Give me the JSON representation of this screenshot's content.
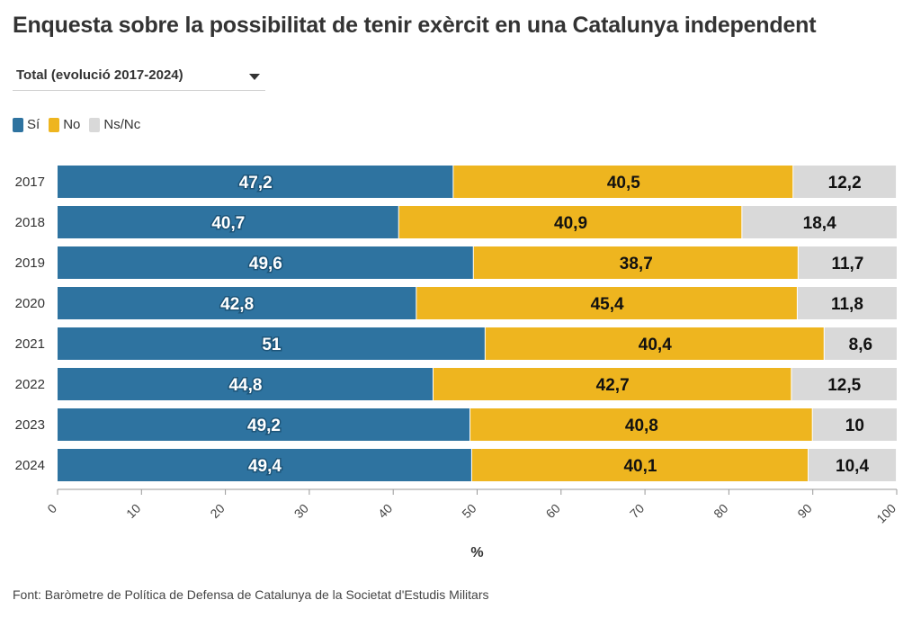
{
  "title": "Enquesta sobre la possibilitat de tenir exèrcit en una Catalunya independent",
  "dropdown": {
    "selected": "Total (evolució 2017-2024)",
    "icon": "chevron-down-icon"
  },
  "source": "Font: Baròmetre de Política de Defensa de Catalunya de la Societat d'Estudis Militars",
  "chart_data": {
    "type": "bar",
    "orientation": "horizontal",
    "stacked": true,
    "title": "Enquesta sobre la possibilitat de tenir exèrcit en una Catalunya independent",
    "xlabel": "%",
    "ylabel": "",
    "xlim": [
      0,
      100
    ],
    "xticks": [
      "0",
      "10",
      "20",
      "30",
      "40",
      "50",
      "60",
      "70",
      "80",
      "90",
      "100"
    ],
    "categories": [
      "2017",
      "2018",
      "2019",
      "2020",
      "2021",
      "2022",
      "2023",
      "2024"
    ],
    "legend_position": "top-left",
    "series": [
      {
        "name": "Sí",
        "color": "#2e73a0",
        "label_color": "#ffffff",
        "values": [
          47.2,
          40.7,
          49.6,
          42.8,
          51,
          44.8,
          49.2,
          49.4
        ],
        "labels": [
          "47,2",
          "40,7",
          "49,6",
          "42,8",
          "51",
          "44,8",
          "49,2",
          "49,4"
        ]
      },
      {
        "name": "No",
        "color": "#eeb51f",
        "label_color": "#111111",
        "values": [
          40.5,
          40.9,
          38.7,
          45.4,
          40.4,
          42.7,
          40.8,
          40.1
        ],
        "labels": [
          "40,5",
          "40,9",
          "38,7",
          "45,4",
          "40,4",
          "42,7",
          "40,8",
          "40,1"
        ]
      },
      {
        "name": "Ns/Nc",
        "color": "#d9d9d9",
        "label_color": "#111111",
        "values": [
          12.2,
          18.4,
          11.7,
          11.8,
          8.6,
          12.5,
          10,
          10.4
        ],
        "labels": [
          "12,2",
          "18,4",
          "11,7",
          "11,8",
          "8,6",
          "12,5",
          "10",
          "10,4"
        ]
      }
    ]
  }
}
